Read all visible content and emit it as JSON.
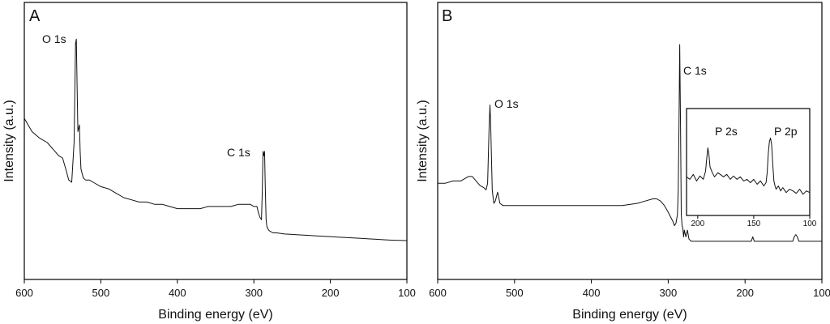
{
  "chart_data": [
    {
      "type": "line",
      "panel_label": "A",
      "xlabel": "Binding energy (eV)",
      "ylabel": "Intensity (a.u.)",
      "xlim": [
        600,
        100
      ],
      "x_reversed": true,
      "xticks": [
        600,
        500,
        400,
        300,
        200,
        100
      ],
      "ylim": [
        0,
        100
      ],
      "y_tick_labels": false,
      "grid": false,
      "annotations": [
        {
          "text": "O 1s",
          "x": 532
        },
        {
          "text": "C 1s",
          "x": 287
        }
      ],
      "series": [
        {
          "x": [
            600,
            590,
            580,
            570,
            560,
            555,
            550,
            545,
            542,
            538,
            535,
            533,
            532,
            531,
            530,
            528,
            527,
            526,
            523,
            520,
            515,
            510,
            500,
            490,
            480,
            470,
            460,
            450,
            440,
            430,
            420,
            410,
            400,
            390,
            380,
            370,
            360,
            350,
            340,
            330,
            320,
            315,
            310,
            305,
            300,
            296,
            294,
            292,
            290,
            289,
            288,
            287,
            286,
            285,
            284,
            283,
            282,
            280,
            275,
            270,
            260,
            250,
            240,
            230,
            220,
            210,
            200,
            190,
            180,
            170,
            160,
            150,
            140,
            130,
            120,
            110,
            100
          ],
          "values": [
            61,
            55,
            52,
            50,
            46,
            44,
            43,
            37,
            33,
            32,
            50,
            95,
            97,
            76,
            55,
            58,
            46,
            38,
            34,
            33,
            33,
            32,
            30,
            29,
            27,
            25,
            24,
            23,
            23,
            22,
            22,
            21,
            20,
            20,
            20,
            20,
            21,
            21,
            21,
            21,
            22,
            22,
            22,
            22,
            21,
            21,
            18,
            16,
            15,
            28,
            46,
            44,
            46,
            28,
            15,
            12,
            11,
            10,
            9,
            9,
            8.5,
            8.3,
            8.1,
            7.9,
            7.7,
            7.5,
            7.3,
            7.1,
            6.9,
            6.7,
            6.5,
            6.3,
            6.1,
            5.9,
            5.7,
            5.6,
            5.5
          ]
        }
      ]
    },
    {
      "type": "line",
      "panel_label": "B",
      "xlabel": "Binding energy (eV)",
      "ylabel": "Intensity (a.u.)",
      "xlim": [
        600,
        100
      ],
      "x_reversed": true,
      "xticks": [
        600,
        500,
        400,
        300,
        200,
        100
      ],
      "ylim": [
        0,
        100
      ],
      "y_tick_labels": false,
      "grid": false,
      "annotations": [
        {
          "text": "O 1s",
          "x": 532
        },
        {
          "text": "C 1s",
          "x": 285
        }
      ],
      "series": [
        {
          "x": [
            600,
            590,
            580,
            570,
            560,
            555,
            550,
            545,
            540,
            537,
            535,
            533,
            532,
            531,
            529,
            527,
            525,
            522,
            519,
            515,
            510,
            500,
            480,
            460,
            440,
            420,
            400,
            380,
            360,
            340,
            330,
            320,
            315,
            310,
            305,
            300,
            297,
            294,
            292,
            290,
            288,
            287,
            286,
            285,
            284,
            283,
            282,
            281,
            280,
            279,
            277,
            275,
            273,
            270,
            260,
            250,
            240,
            230,
            220,
            210,
            200,
            192,
            190,
            188,
            180,
            170,
            160,
            150,
            142,
            138,
            136,
            134,
            132,
            130,
            125,
            120,
            110,
            100
          ],
          "values": [
            34,
            34,
            35,
            35,
            37,
            37,
            35,
            33,
            32,
            31,
            34,
            60,
            69,
            60,
            31,
            25,
            26,
            30,
            25,
            24,
            24,
            24,
            24,
            24,
            24,
            24,
            24,
            24,
            24,
            25,
            26,
            27,
            27,
            26,
            24,
            21,
            19,
            17,
            15,
            16,
            20,
            30,
            60,
            96,
            60,
            20,
            15,
            14,
            10,
            13,
            10,
            13,
            9,
            8,
            8,
            8,
            8,
            8,
            8,
            8,
            8,
            8,
            10,
            8,
            8,
            8,
            8,
            8,
            8,
            8,
            10,
            11,
            10,
            8,
            8,
            8,
            8,
            8
          ]
        }
      ]
    },
    {
      "type": "line",
      "role": "inset",
      "panel": "B",
      "xlim": [
        210,
        100
      ],
      "x_reversed": true,
      "xticks": [
        200,
        150,
        100
      ],
      "ylim": [
        0,
        100
      ],
      "y_tick_labels": false,
      "grid": false,
      "annotations": [
        {
          "text": "P 2s",
          "x": 191
        },
        {
          "text": "P 2p",
          "x": 134
        }
      ],
      "series": [
        {
          "x": [
            210,
            207,
            204,
            201,
            198,
            195,
            193,
            192,
            191,
            190,
            189,
            187,
            185,
            182,
            180,
            177,
            174,
            171,
            168,
            165,
            162,
            159,
            156,
            153,
            150,
            147,
            144,
            141,
            139,
            138,
            137,
            136,
            135,
            134,
            133,
            132,
            131,
            130,
            128,
            126,
            124,
            121,
            118,
            115,
            112,
            109,
            106,
            103,
            100
          ],
          "values": [
            33,
            30,
            36,
            28,
            34,
            30,
            40,
            55,
            68,
            60,
            45,
            38,
            33,
            38,
            36,
            33,
            36,
            30,
            34,
            30,
            33,
            28,
            30,
            26,
            30,
            24,
            28,
            22,
            26,
            38,
            62,
            76,
            80,
            72,
            48,
            28,
            22,
            18,
            22,
            16,
            20,
            14,
            18,
            16,
            13,
            18,
            12,
            16,
            14
          ]
        }
      ]
    }
  ]
}
